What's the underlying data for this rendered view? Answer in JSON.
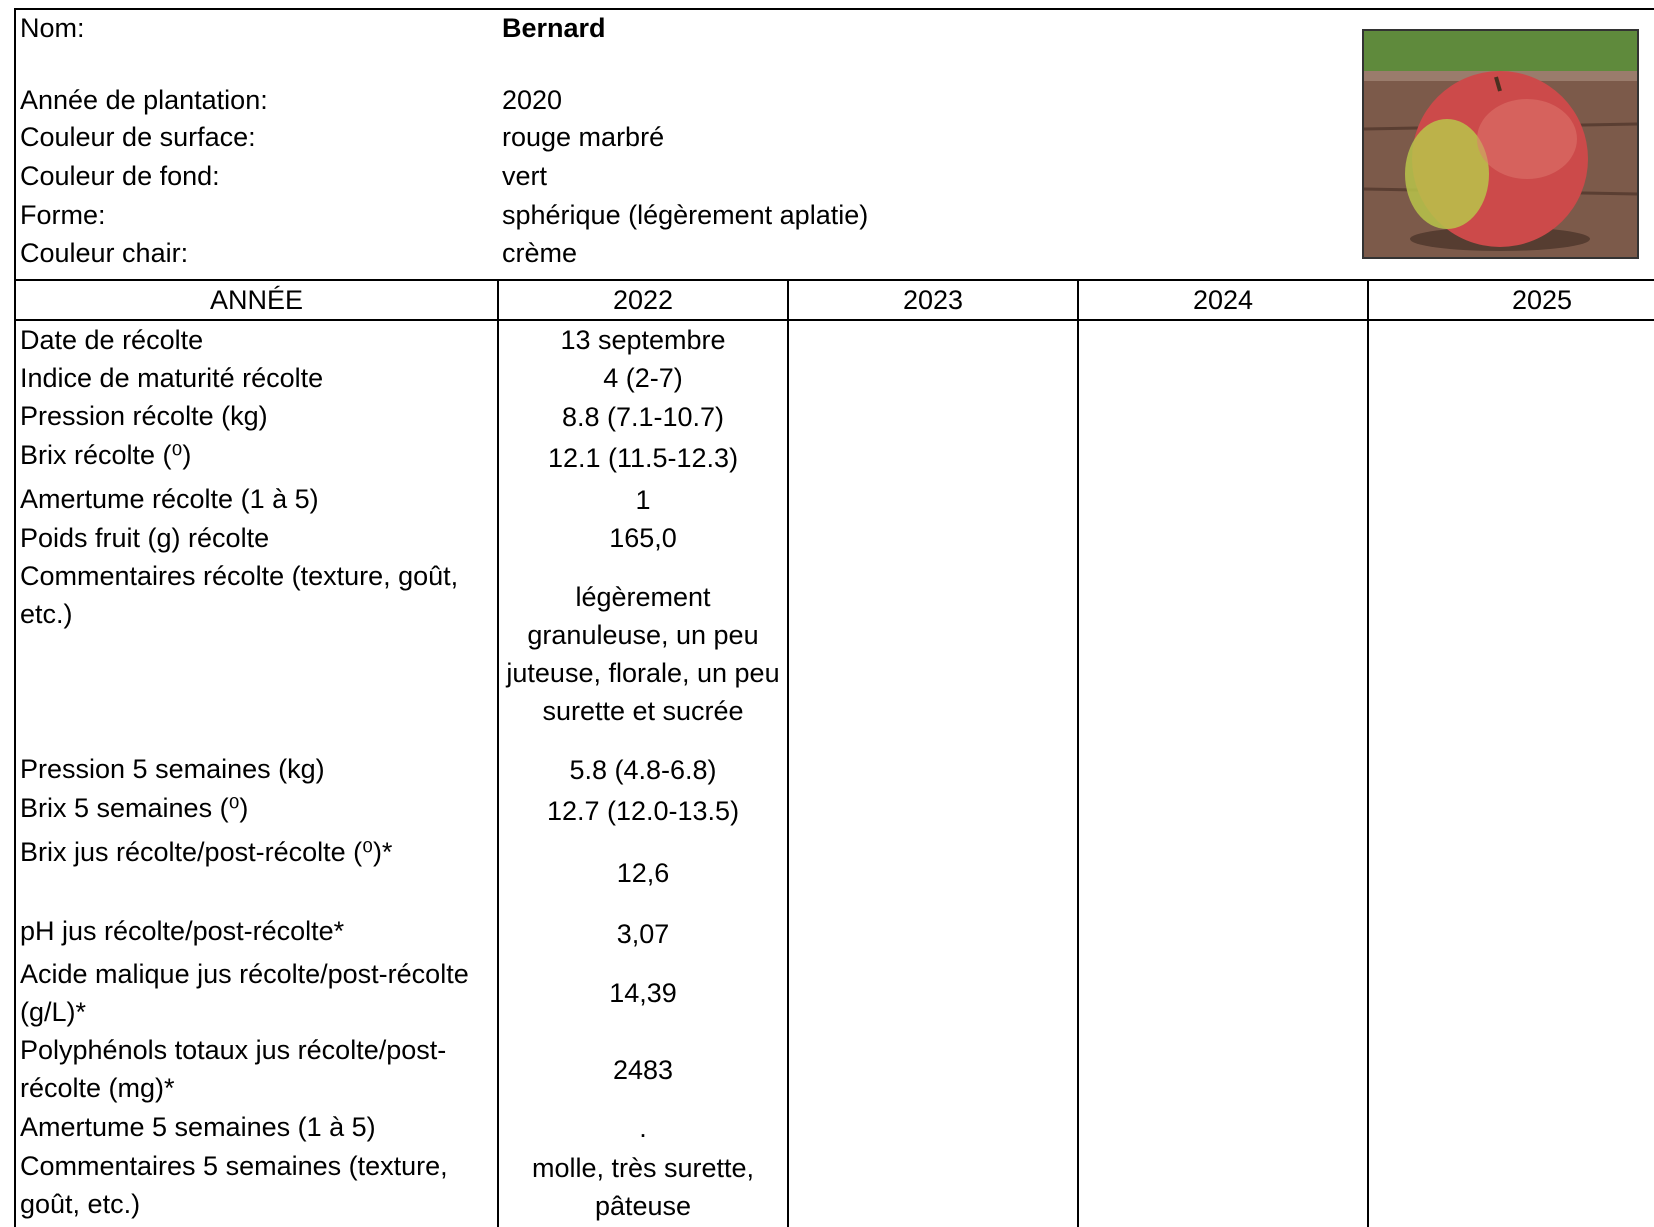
{
  "header": {
    "fields": [
      {
        "label": "Nom:",
        "value": "Bernard"
      },
      {
        "label": "Année de plantation:",
        "value": "2020"
      },
      {
        "label": "Couleur de surface:",
        "value": "rouge marbré"
      },
      {
        "label": "Couleur de fond:",
        "value": "vert"
      },
      {
        "label": "Forme:",
        "value": "sphérique (légèrement aplatie)"
      },
      {
        "label": "Couleur chair:",
        "value": "crème"
      }
    ]
  },
  "table": {
    "columns": [
      "ANNÉE",
      "2022",
      "2023",
      "2024",
      "2025"
    ],
    "rows": [
      {
        "label": "Date de récolte",
        "values": [
          "13 septembre"
        ]
      },
      {
        "label": "Indice de maturité récolte",
        "values": [
          "4 (2-7)"
        ]
      },
      {
        "label": "Pression récolte (kg)",
        "values": [
          "8.8 (7.1-10.7)"
        ]
      },
      {
        "label": "Brix récolte (⁰)",
        "values": [
          "12.1 (11.5-12.3)"
        ]
      },
      {
        "label": "Amertume récolte (1 à 5)",
        "values": [
          "1"
        ]
      },
      {
        "label": "Poids fruit (g) récolte",
        "values": [
          "165,0"
        ]
      },
      {
        "label": "Commentaires récolte (texture, goût, etc.)",
        "values": [
          "légèrement granuleuse, un peu juteuse, florale, un peu surette et sucrée"
        ]
      },
      {
        "label": "Pression 5 semaines (kg)",
        "values": [
          "5.8 (4.8-6.8)"
        ]
      },
      {
        "label": "Brix 5 semaines (⁰)",
        "values": [
          "12.7 (12.0-13.5)"
        ]
      },
      {
        "label": "Brix jus récolte/post-récolte (⁰)*",
        "values": [
          "12,6"
        ]
      },
      {
        "label": "pH jus récolte/post-récolte*",
        "values": [
          "3,07"
        ]
      },
      {
        "label": "Acide malique jus récolte/post-récolte (g/L)*",
        "values": [
          "14,39"
        ]
      },
      {
        "label": "Polyphénols totaux jus récolte/post-récolte (mg)*",
        "values": [
          "2483"
        ]
      },
      {
        "label": "Amertume 5 semaines (1 à 5)",
        "values": [
          "."
        ]
      },
      {
        "label": "Commentaires 5 semaines (texture, goût, etc.)",
        "values": [
          "molle, très surette, pâteuse"
        ]
      }
    ]
  }
}
